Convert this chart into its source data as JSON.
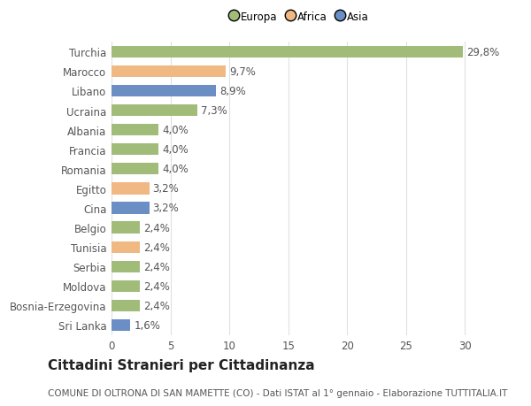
{
  "categories": [
    "Sri Lanka",
    "Bosnia-Erzegovina",
    "Moldova",
    "Serbia",
    "Tunisia",
    "Belgio",
    "Cina",
    "Egitto",
    "Romania",
    "Francia",
    "Albania",
    "Ucraina",
    "Libano",
    "Marocco",
    "Turchia"
  ],
  "values": [
    1.6,
    2.4,
    2.4,
    2.4,
    2.4,
    2.4,
    3.2,
    3.2,
    4.0,
    4.0,
    4.0,
    7.3,
    8.9,
    9.7,
    29.8
  ],
  "labels": [
    "1,6%",
    "2,4%",
    "2,4%",
    "2,4%",
    "2,4%",
    "2,4%",
    "3,2%",
    "3,2%",
    "4,0%",
    "4,0%",
    "4,0%",
    "7,3%",
    "8,9%",
    "9,7%",
    "29,8%"
  ],
  "colors": [
    "#6b8ec4",
    "#a0bc78",
    "#a0bc78",
    "#a0bc78",
    "#f0b882",
    "#a0bc78",
    "#6b8ec4",
    "#f0b882",
    "#a0bc78",
    "#a0bc78",
    "#a0bc78",
    "#a0bc78",
    "#6b8ec4",
    "#f0b882",
    "#a0bc78"
  ],
  "legend_labels": [
    "Europa",
    "Africa",
    "Asia"
  ],
  "legend_colors": [
    "#a0bc78",
    "#f0b882",
    "#6b8ec4"
  ],
  "title": "Cittadini Stranieri per Cittadinanza",
  "subtitle": "COMUNE DI OLTRONA DI SAN MAMETTE (CO) - Dati ISTAT al 1° gennaio - Elaborazione TUTTITALIA.IT",
  "xlim": [
    0,
    32
  ],
  "xticks": [
    0,
    5,
    10,
    15,
    20,
    25,
    30
  ],
  "background_color": "#ffffff",
  "plot_background": "#ffffff",
  "grid_color": "#e0e0e0",
  "bar_height": 0.6,
  "title_fontsize": 11,
  "subtitle_fontsize": 7.5,
  "tick_fontsize": 8.5,
  "label_fontsize": 8.5
}
